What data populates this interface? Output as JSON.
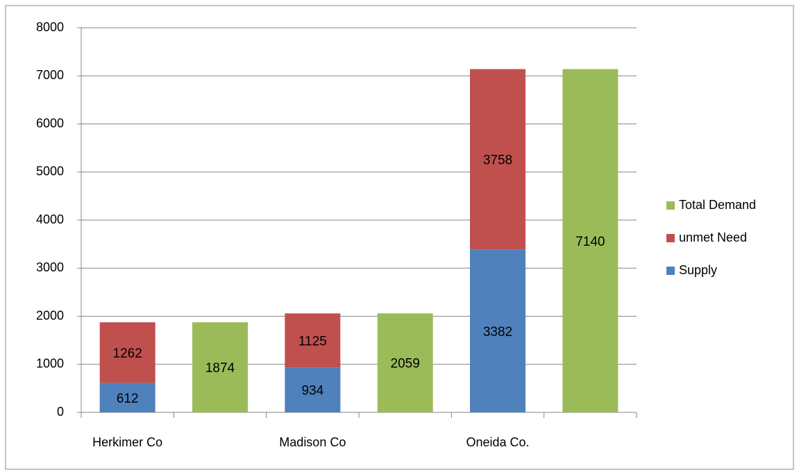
{
  "chart_data": {
    "type": "stacked_bar",
    "categories": [
      "Herkimer Co",
      null,
      "Madison Co",
      null,
      "Oneida Co.",
      null
    ],
    "series": [
      {
        "name": "Supply",
        "color": "#4f81bd",
        "values": [
          612,
          null,
          934,
          null,
          3382,
          null
        ]
      },
      {
        "name": "unmet Need",
        "color": "#c0504d",
        "values": [
          1262,
          null,
          1125,
          null,
          3758,
          null
        ]
      },
      {
        "name": "Total Demand",
        "color": "#9bbb59",
        "values": [
          null,
          1874,
          null,
          2059,
          null,
          7140
        ]
      }
    ],
    "ylim": [
      0,
      8000
    ],
    "yticks": [
      0,
      1000,
      2000,
      3000,
      4000,
      5000,
      6000,
      7000,
      8000
    ],
    "grid": true,
    "legend": "right",
    "data_labels": true
  }
}
